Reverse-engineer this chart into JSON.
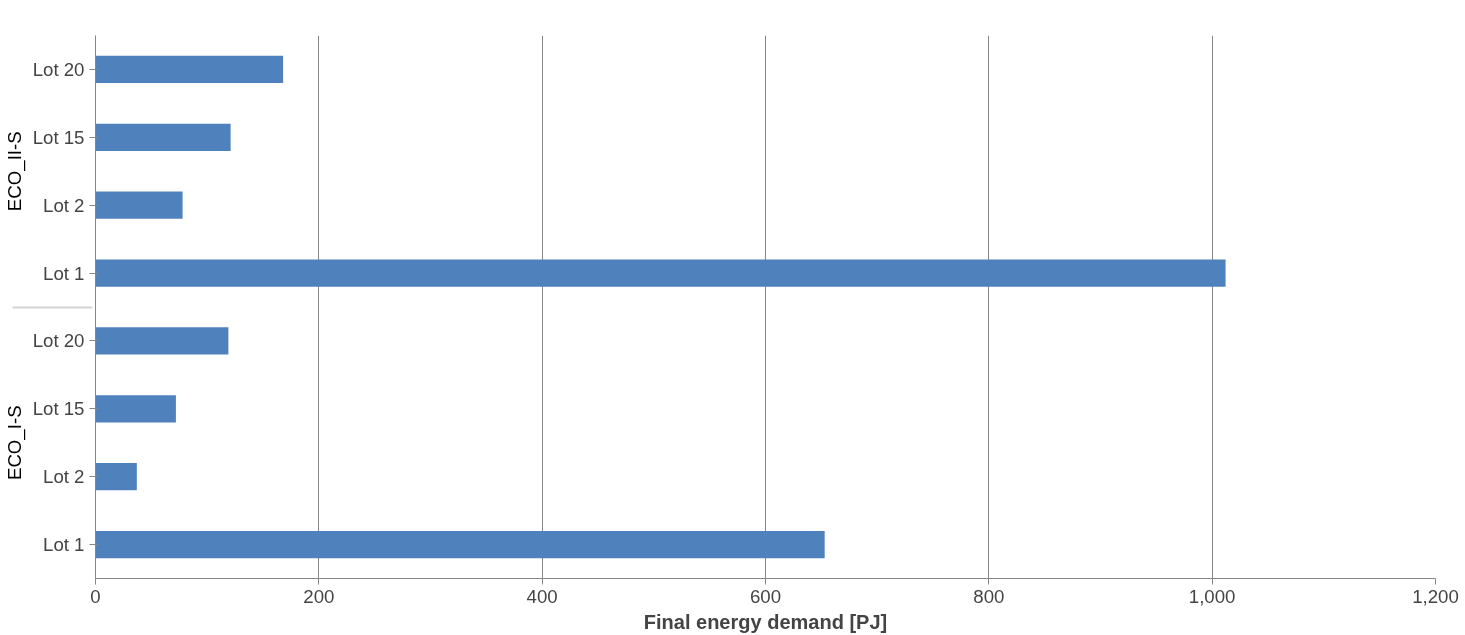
{
  "chart_data": {
    "type": "bar",
    "orientation": "horizontal",
    "xlabel": "Final energy demand [PJ]",
    "categories": [
      "Lot 20",
      "Lot 15",
      "Lot 2",
      "Lot 1",
      "Lot 20",
      "Lot 15",
      "Lot 2",
      "Lot 1"
    ],
    "annotations": [
      "ECO_II-S",
      "ECO_I-S"
    ],
    "values": [
      168,
      121,
      78,
      1012,
      119,
      72,
      37,
      653
    ],
    "color": "#4f81bd",
    "xlim": [
      0,
      1200
    ],
    "xticks": [
      0,
      200,
      400,
      600,
      800,
      {
        "value": 1000,
        "label": "1,000"
      },
      {
        "value": 1200,
        "label": "1,200"
      }
    ],
    "grid": "x"
  }
}
